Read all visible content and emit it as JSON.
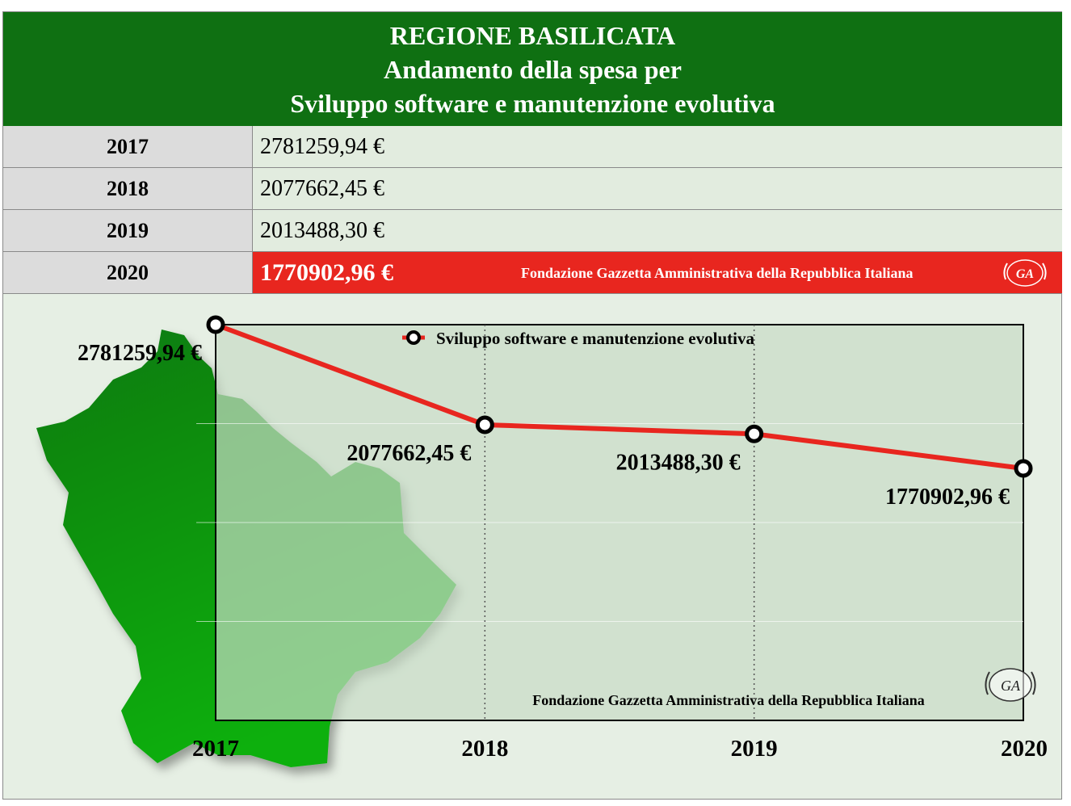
{
  "header": {
    "line1": "REGIONE BASILICATA",
    "line2": "Andamento della spesa per",
    "line3": "Sviluppo software e manutenzione evolutiva"
  },
  "table": {
    "rows": [
      {
        "year": "2017",
        "value": "2781259,94 €"
      },
      {
        "year": "2018",
        "value": "2077662,45 €"
      },
      {
        "year": "2019",
        "value": "2013488,30 €"
      },
      {
        "year": "2020",
        "value": "1770902,96 €"
      }
    ],
    "foundation": "Fondazione Gazzetta Amministrativa della Repubblica Italiana"
  },
  "colors": {
    "header_green": "#0f7012",
    "highlight_red": "#e8261f",
    "line_red": "#e8261f",
    "map_green": "#1c9e1c",
    "plot_bg": "#c8dcc6"
  },
  "chart_data": {
    "type": "line",
    "categories": [
      "2017",
      "2018",
      "2019",
      "2020"
    ],
    "series": [
      {
        "name": "Sviluppo software e manutenzione evolutiva",
        "values": [
          2781259.94,
          2077662.45,
          2013488.3,
          1770902.96
        ],
        "labels": [
          "2781259,94 €",
          "2077662,45 €",
          "2013488,30 €",
          "1770902,96 €"
        ]
      }
    ],
    "ylim": [
      0,
      2781259.94
    ],
    "grid": true,
    "legend": "top",
    "watermark": "Fondazione Gazzetta Amministrativa della Repubblica Italiana"
  }
}
